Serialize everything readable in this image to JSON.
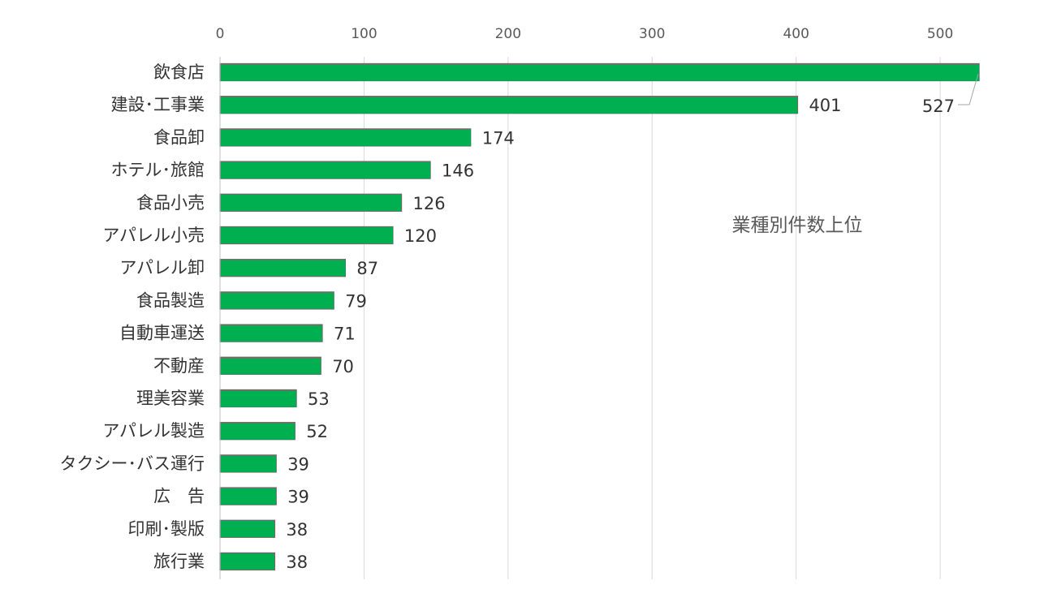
{
  "chart_data": {
    "type": "bar",
    "orientation": "horizontal",
    "annotation": "業種別件数上位",
    "categories": [
      "飲食店",
      "建設･工事業",
      "食品卸",
      "ホテル･旅館",
      "食品小売",
      "アパレル小売",
      "アパレル卸",
      "食品製造",
      "自動車運送",
      "不動産",
      "理美容業",
      "アパレル製造",
      "タクシー･バス運行",
      "広　告",
      "印刷･製版",
      "旅行業"
    ],
    "values": [
      527,
      401,
      174,
      146,
      126,
      120,
      87,
      79,
      71,
      70,
      53,
      52,
      39,
      39,
      38,
      38
    ],
    "xlim": [
      0,
      527
    ],
    "x_ticks": [
      "0",
      "100",
      "200",
      "300",
      "400",
      "500"
    ],
    "x_axis_position": "top",
    "gridlines": true,
    "data_labels": true,
    "bar_color": "#00b050",
    "bar_border_color": "#6b6b6b",
    "grid_color": "#d9d9d9",
    "text_color": "#333333"
  }
}
